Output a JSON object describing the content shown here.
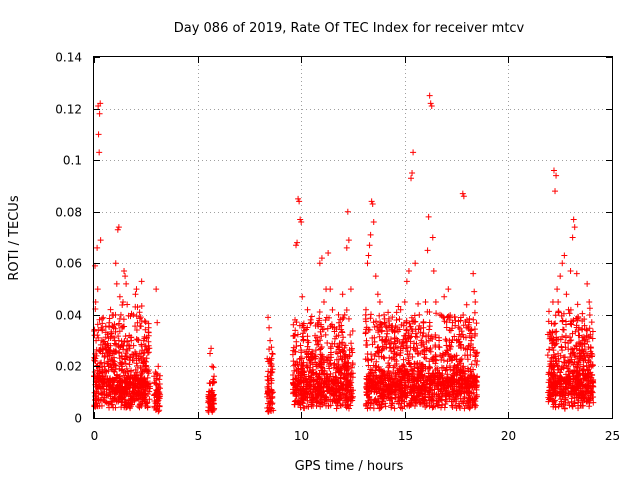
{
  "chart_data": {
    "type": "scatter",
    "title": "Day 086 of 2019, Rate Of TEC Index for receiver mtcv",
    "xlabel": "GPS time / hours",
    "ylabel": "ROTI / TECUs",
    "xlim": [
      0,
      25
    ],
    "ylim": [
      0,
      0.14
    ],
    "xticks": [
      0,
      5,
      10,
      15,
      20,
      25
    ],
    "xtick_labels": [
      "0",
      "5",
      "10",
      "15",
      "20",
      "25"
    ],
    "yticks": [
      0,
      0.02,
      0.04,
      0.06,
      0.08,
      0.1,
      0.12,
      0.14
    ],
    "ytick_labels": [
      "0",
      "0.02",
      "0.04",
      "0.06",
      "0.08",
      "0.1",
      "0.12",
      "0.14"
    ],
    "grid": true,
    "marker": "plus",
    "color": "#ff0000",
    "series": [
      {
        "name": "ROTI",
        "points": [
          [
            0.05,
            0.059
          ],
          [
            0.08,
            0.045
          ],
          [
            0.1,
            0.03
          ],
          [
            0.12,
            0.02
          ],
          [
            0.15,
            0.066
          ],
          [
            0.18,
            0.05
          ],
          [
            0.2,
            0.121
          ],
          [
            0.22,
            0.11
          ],
          [
            0.25,
            0.103
          ],
          [
            0.27,
            0.118
          ],
          [
            0.3,
            0.122
          ],
          [
            0.32,
            0.069
          ],
          [
            0.35,
            0.035
          ],
          [
            0.4,
            0.025
          ],
          [
            0.5,
            0.02
          ],
          [
            0.6,
            0.018
          ],
          [
            0.7,
            0.02
          ],
          [
            0.8,
            0.028
          ],
          [
            0.9,
            0.025
          ],
          [
            1.0,
            0.03
          ],
          [
            1.05,
            0.06
          ],
          [
            1.1,
            0.052
          ],
          [
            1.15,
            0.073
          ],
          [
            1.2,
            0.074
          ],
          [
            1.25,
            0.047
          ],
          [
            1.3,
            0.04
          ],
          [
            1.35,
            0.035
          ],
          [
            1.4,
            0.045
          ],
          [
            1.45,
            0.057
          ],
          [
            1.5,
            0.055
          ],
          [
            1.55,
            0.052
          ],
          [
            1.6,
            0.044
          ],
          [
            1.7,
            0.032
          ],
          [
            1.8,
            0.03
          ],
          [
            1.9,
            0.04
          ],
          [
            2.0,
            0.048
          ],
          [
            2.05,
            0.05
          ],
          [
            2.1,
            0.043
          ],
          [
            2.2,
            0.041
          ],
          [
            2.3,
            0.053
          ],
          [
            2.4,
            0.03
          ],
          [
            2.5,
            0.02
          ],
          [
            2.6,
            0.018
          ],
          [
            3.0,
            0.05
          ],
          [
            3.05,
            0.037
          ],
          [
            3.1,
            0.02
          ],
          [
            3.15,
            0.015
          ],
          [
            5.6,
            0.025
          ],
          [
            5.65,
            0.027
          ],
          [
            5.7,
            0.02
          ],
          [
            5.75,
            0.015
          ],
          [
            8.4,
            0.039
          ],
          [
            8.45,
            0.035
          ],
          [
            8.5,
            0.03
          ],
          [
            8.55,
            0.02
          ],
          [
            8.6,
            0.025
          ],
          [
            9.7,
            0.032
          ],
          [
            9.75,
            0.067
          ],
          [
            9.8,
            0.068
          ],
          [
            9.85,
            0.085
          ],
          [
            9.9,
            0.084
          ],
          [
            9.95,
            0.077
          ],
          [
            10.0,
            0.076
          ],
          [
            10.05,
            0.047
          ],
          [
            10.1,
            0.03
          ],
          [
            10.3,
            0.03
          ],
          [
            10.5,
            0.025
          ],
          [
            10.7,
            0.03
          ],
          [
            10.9,
            0.06
          ],
          [
            11.0,
            0.062
          ],
          [
            11.1,
            0.045
          ],
          [
            11.2,
            0.05
          ],
          [
            11.3,
            0.064
          ],
          [
            11.4,
            0.05
          ],
          [
            11.6,
            0.035
          ],
          [
            11.8,
            0.04
          ],
          [
            12.0,
            0.048
          ],
          [
            12.1,
            0.04
          ],
          [
            12.2,
            0.066
          ],
          [
            12.25,
            0.08
          ],
          [
            12.3,
            0.069
          ],
          [
            12.4,
            0.05
          ],
          [
            13.2,
            0.06
          ],
          [
            13.25,
            0.063
          ],
          [
            13.3,
            0.067
          ],
          [
            13.35,
            0.071
          ],
          [
            13.4,
            0.084
          ],
          [
            13.45,
            0.083
          ],
          [
            13.5,
            0.076
          ],
          [
            13.6,
            0.055
          ],
          [
            13.7,
            0.048
          ],
          [
            13.8,
            0.045
          ],
          [
            14.0,
            0.04
          ],
          [
            14.2,
            0.03
          ],
          [
            14.4,
            0.035
          ],
          [
            14.6,
            0.038
          ],
          [
            14.8,
            0.042
          ],
          [
            15.0,
            0.045
          ],
          [
            15.1,
            0.053
          ],
          [
            15.2,
            0.057
          ],
          [
            15.3,
            0.093
          ],
          [
            15.35,
            0.095
          ],
          [
            15.4,
            0.103
          ],
          [
            15.5,
            0.06
          ],
          [
            15.7,
            0.04
          ],
          [
            15.9,
            0.035
          ],
          [
            16.0,
            0.045
          ],
          [
            16.1,
            0.065
          ],
          [
            16.15,
            0.078
          ],
          [
            16.2,
            0.125
          ],
          [
            16.25,
            0.122
          ],
          [
            16.3,
            0.121
          ],
          [
            16.35,
            0.07
          ],
          [
            16.4,
            0.057
          ],
          [
            16.5,
            0.045
          ],
          [
            16.7,
            0.04
          ],
          [
            16.9,
            0.047
          ],
          [
            17.1,
            0.05
          ],
          [
            17.3,
            0.037
          ],
          [
            17.5,
            0.03
          ],
          [
            17.8,
            0.087
          ],
          [
            17.85,
            0.086
          ],
          [
            18.0,
            0.035
          ],
          [
            18.2,
            0.03
          ],
          [
            18.3,
            0.056
          ],
          [
            18.35,
            0.049
          ],
          [
            18.4,
            0.045
          ],
          [
            22.0,
            0.02
          ],
          [
            22.1,
            0.03
          ],
          [
            22.15,
            0.045
          ],
          [
            22.2,
            0.096
          ],
          [
            22.25,
            0.088
          ],
          [
            22.3,
            0.094
          ],
          [
            22.35,
            0.05
          ],
          [
            22.4,
            0.045
          ],
          [
            22.5,
            0.055
          ],
          [
            22.6,
            0.06
          ],
          [
            22.7,
            0.063
          ],
          [
            22.8,
            0.048
          ],
          [
            22.9,
            0.042
          ],
          [
            23.0,
            0.057
          ],
          [
            23.1,
            0.07
          ],
          [
            23.15,
            0.077
          ],
          [
            23.2,
            0.074
          ],
          [
            23.3,
            0.056
          ],
          [
            23.4,
            0.035
          ],
          [
            23.6,
            0.03
          ],
          [
            23.8,
            0.052
          ],
          [
            23.9,
            0.045
          ],
          [
            24.0,
            0.02
          ]
        ]
      }
    ],
    "dense_segments": [
      {
        "start": 0.0,
        "end": 2.7,
        "base": 0.012,
        "span": 0.03,
        "n": 700
      },
      {
        "start": 2.9,
        "end": 3.2,
        "base": 0.008,
        "span": 0.01,
        "n": 60
      },
      {
        "start": 5.5,
        "end": 5.8,
        "base": 0.007,
        "span": 0.012,
        "n": 70
      },
      {
        "start": 8.35,
        "end": 8.65,
        "base": 0.008,
        "span": 0.02,
        "n": 70
      },
      {
        "start": 9.6,
        "end": 12.5,
        "base": 0.012,
        "span": 0.028,
        "n": 700
      },
      {
        "start": 13.1,
        "end": 18.5,
        "base": 0.012,
        "span": 0.03,
        "n": 1300
      },
      {
        "start": 21.9,
        "end": 24.1,
        "base": 0.012,
        "span": 0.03,
        "n": 600
      }
    ]
  }
}
